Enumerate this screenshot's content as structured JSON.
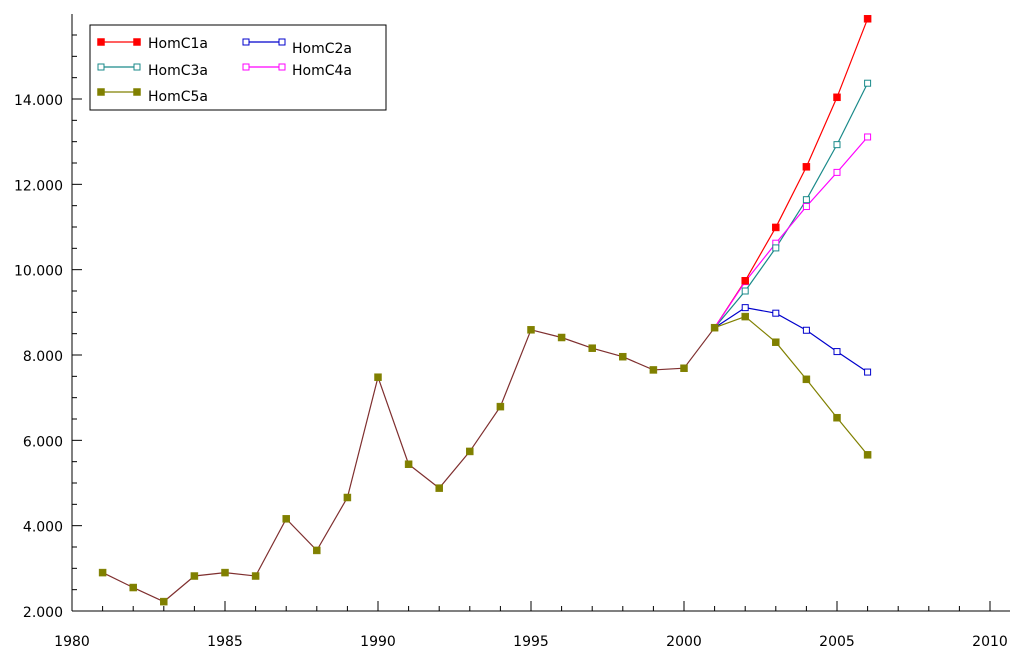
{
  "chart_data": {
    "type": "line",
    "title": "",
    "xlabel": "",
    "ylabel": "",
    "xlim": [
      1980,
      2010
    ],
    "ylim": [
      2000,
      15900
    ],
    "x_ticks": [
      1980,
      1985,
      1990,
      1995,
      2000,
      2005,
      2010
    ],
    "y_ticks": [
      2000,
      4000,
      6000,
      8000,
      10000,
      12000,
      14000
    ],
    "y_tick_labels": [
      "2.000",
      "4.000",
      "6.000",
      "8.000",
      "10.000",
      "12.000",
      "14.000"
    ],
    "grid": false,
    "legend_position": "top-left",
    "history": {
      "x": [
        1981,
        1982,
        1983,
        1984,
        1985,
        1986,
        1987,
        1988,
        1989,
        1990,
        1991,
        1992,
        1993,
        1994,
        1995,
        1996,
        1997,
        1998,
        1999,
        2000,
        2001
      ],
      "y": [
        2900,
        2550,
        2220,
        2820,
        2900,
        2820,
        4160,
        3420,
        4660,
        7480,
        5440,
        4880,
        5740,
        6790,
        8590,
        8410,
        8160,
        7960,
        7650,
        7690,
        8640
      ],
      "color": "#7f2f2f"
    },
    "series": [
      {
        "name": "HomC1a",
        "color": "#ff0000",
        "marker": "filled",
        "x": [
          2001,
          2002,
          2003,
          2004,
          2005,
          2006
        ],
        "y": [
          8640,
          9740,
          10990,
          12410,
          14040,
          15880
        ]
      },
      {
        "name": "HomC2a",
        "color": "#0000cc",
        "marker": "open",
        "x": [
          2001,
          2002,
          2003,
          2004,
          2005,
          2006
        ],
        "y": [
          8640,
          9110,
          8980,
          8580,
          8080,
          7600
        ]
      },
      {
        "name": "HomC3a",
        "color": "#1a8a8a",
        "marker": "open",
        "x": [
          2001,
          2002,
          2003,
          2004,
          2005,
          2006
        ],
        "y": [
          8640,
          9500,
          10510,
          11640,
          12930,
          14370
        ]
      },
      {
        "name": "HomC4a",
        "color": "#ff00ff",
        "marker": "open",
        "x": [
          2001,
          2002,
          2003,
          2004,
          2005,
          2006
        ],
        "y": [
          8640,
          9720,
          10620,
          11480,
          12280,
          13110
        ]
      },
      {
        "name": "HomC5a",
        "color": "#808000",
        "marker": "filled",
        "x": [
          1981,
          1982,
          1983,
          1984,
          1985,
          1986,
          1987,
          1988,
          1989,
          1990,
          1991,
          1992,
          1993,
          1994,
          1995,
          1996,
          1997,
          1998,
          1999,
          2000,
          2001,
          2002,
          2003,
          2004,
          2005,
          2006
        ],
        "y": [
          2900,
          2550,
          2220,
          2820,
          2900,
          2820,
          4160,
          3420,
          4660,
          7480,
          5440,
          4880,
          5740,
          6790,
          8590,
          8410,
          8160,
          7960,
          7650,
          7690,
          8640,
          8900,
          8300,
          7430,
          6530,
          5660
        ]
      }
    ]
  }
}
